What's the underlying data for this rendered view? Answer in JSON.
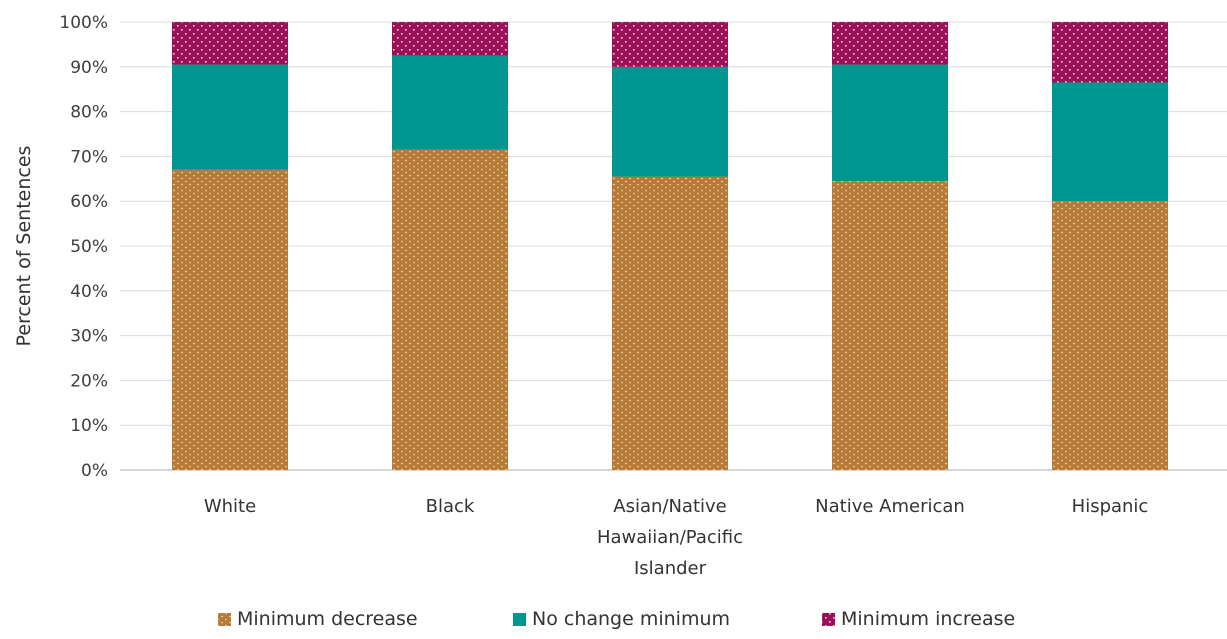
{
  "chart_data": {
    "type": "bar",
    "stacked": true,
    "categories": [
      "White",
      "Black",
      "Asian/Native Hawaiian/Pacific Islander",
      "Native American",
      "Hispanic"
    ],
    "category_lines": [
      [
        "White"
      ],
      [
        "Black"
      ],
      [
        "Asian/Native",
        "Hawaiian/Pacific",
        "Islander"
      ],
      [
        "Native American"
      ],
      [
        "Hispanic"
      ]
    ],
    "series": [
      {
        "name": "Minimum decrease",
        "values": [
          67,
          71.5,
          65.5,
          64.5,
          60
        ],
        "color": "#b87a37"
      },
      {
        "name": "No change minimum",
        "values": [
          23.5,
          21,
          24.5,
          26,
          26.5
        ],
        "color": "#009690"
      },
      {
        "name": "Minimum increase",
        "values": [
          9.5,
          7.5,
          10,
          9.5,
          13.5
        ],
        "color": "#9c0f59"
      }
    ],
    "ylabel": "Percent of Sentences",
    "xlabel": "",
    "ylim": [
      0,
      100
    ],
    "yticks": [
      "0%",
      "10%",
      "20%",
      "30%",
      "40%",
      "50%",
      "60%",
      "70%",
      "80%",
      "90%",
      "100%"
    ],
    "grid": true,
    "legend_position": "bottom"
  }
}
